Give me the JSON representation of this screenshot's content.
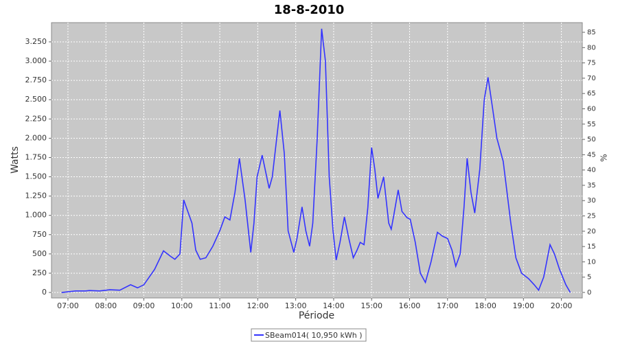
{
  "chart_data": {
    "type": "line",
    "title": "18-8-2010",
    "x_label": "Période",
    "y_label": "Watts",
    "y2_label": "%",
    "x": [
      "06:50",
      "07:01",
      "07:12",
      "07:28",
      "07:34",
      "07:50",
      "08:06",
      "08:22",
      "08:39",
      "08:50",
      "09:00",
      "09:17",
      "09:31",
      "09:42",
      "09:49",
      "09:57",
      "10:03",
      "10:16",
      "10:22",
      "10:29",
      "10:38",
      "10:49",
      "11:00",
      "11:08",
      "11:16",
      "11:24",
      "11:31",
      "11:40",
      "11:49",
      "11:54",
      "11:59",
      "12:07",
      "12:18",
      "12:23",
      "12:35",
      "12:42",
      "12:48",
      "12:57",
      "13:02",
      "13:10",
      "13:16",
      "13:22",
      "13:27",
      "13:34",
      "13:41",
      "13:47",
      "13:53",
      "13:59",
      "14:04",
      "14:10",
      "14:17",
      "14:24",
      "14:31",
      "14:37",
      "14:42",
      "14:48",
      "14:54",
      "15:00",
      "15:05",
      "15:10",
      "15:19",
      "15:27",
      "15:31",
      "15:35",
      "15:42",
      "15:48",
      "15:56",
      "16:01",
      "16:09",
      "16:17",
      "16:25",
      "16:34",
      "16:44",
      "16:52",
      "17:00",
      "17:07",
      "17:13",
      "17:20",
      "17:26",
      "17:31",
      "17:37",
      "17:43",
      "17:51",
      "17:58",
      "18:04",
      "18:11",
      "18:18",
      "18:28",
      "18:40",
      "18:48",
      "18:57",
      "19:08",
      "19:17",
      "19:24",
      "19:32",
      "19:42",
      "19:49",
      "19:57",
      "20:07",
      "20:14"
    ],
    "series": [
      {
        "name": "SBeam014( 10,950 kWh )",
        "color": "#3333ff",
        "values": [
          0,
          10,
          20,
          20,
          25,
          20,
          35,
          30,
          100,
          60,
          100,
          300,
          540,
          470,
          430,
          500,
          1200,
          900,
          550,
          430,
          450,
          600,
          800,
          980,
          940,
          1300,
          1740,
          1200,
          520,
          900,
          1500,
          1780,
          1350,
          1500,
          2360,
          1800,
          800,
          520,
          700,
          1110,
          800,
          600,
          900,
          2000,
          3420,
          3000,
          1500,
          800,
          420,
          650,
          980,
          700,
          450,
          550,
          650,
          620,
          1100,
          1880,
          1600,
          1220,
          1500,
          900,
          820,
          1000,
          1330,
          1050,
          970,
          950,
          650,
          250,
          130,
          400,
          780,
          730,
          700,
          550,
          340,
          500,
          1100,
          1740,
          1300,
          1030,
          1600,
          2500,
          2790,
          2400,
          2000,
          1700,
          900,
          450,
          250,
          180,
          100,
          30,
          200,
          620,
          500,
          300,
          100,
          0
        ]
      }
    ],
    "xlim": [
      "06:34",
      "20:33"
    ],
    "xticks": [
      "07:00",
      "08:00",
      "09:00",
      "10:00",
      "11:00",
      "12:00",
      "13:00",
      "14:00",
      "15:00",
      "16:00",
      "17:00",
      "18:00",
      "19:00",
      "20:00"
    ],
    "ylim": [
      -71,
      3499
    ],
    "yticks": [
      0,
      250,
      500,
      750,
      {
        "value": 1000,
        "label": "1.000"
      },
      {
        "value": 1250,
        "label": "1.250"
      },
      {
        "value": 1500,
        "label": "1.500"
      },
      {
        "value": 1750,
        "label": "1.750"
      },
      {
        "value": 2000,
        "label": "2.000"
      },
      {
        "value": 2250,
        "label": "2.250"
      },
      {
        "value": 2500,
        "label": "2.500"
      },
      {
        "value": 2750,
        "label": "2.750"
      },
      {
        "value": 3000,
        "label": "3.000"
      },
      {
        "value": 3250,
        "label": "3.250"
      }
    ],
    "y2lim": [
      -1.8,
      88.15
    ],
    "y2ticks": [
      0,
      5,
      10,
      15,
      20,
      25,
      30,
      35,
      40,
      45,
      50,
      55,
      60,
      65,
      70,
      75,
      80,
      85
    ],
    "grid": true,
    "legend": "bottom"
  }
}
